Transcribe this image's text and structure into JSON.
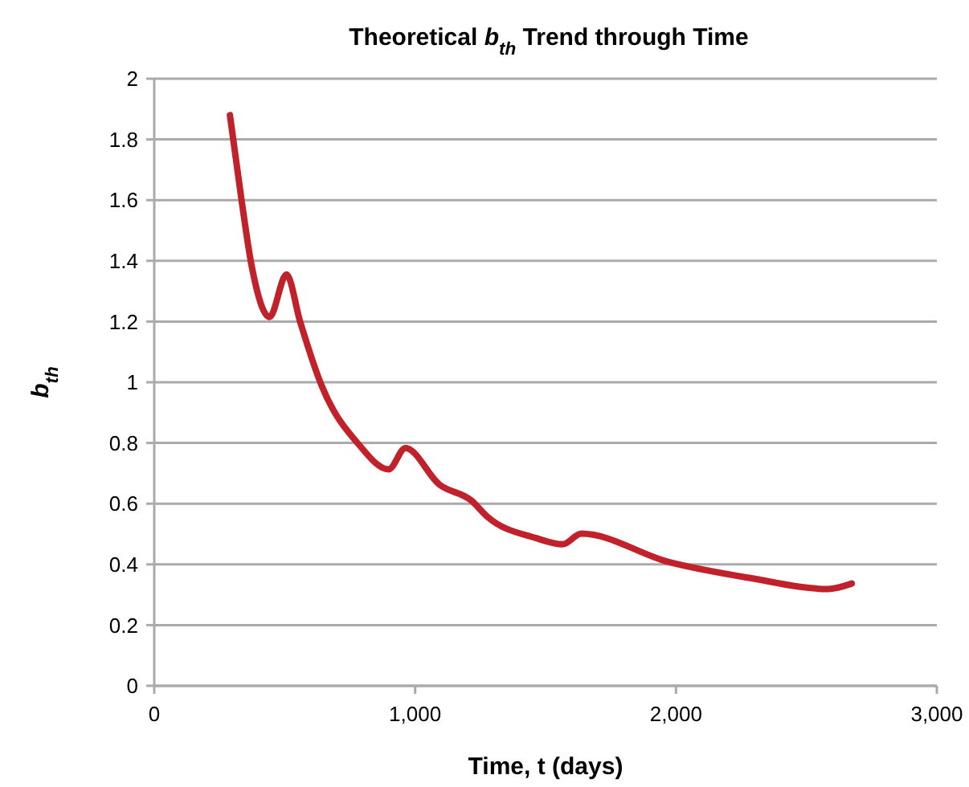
{
  "chart_data": {
    "type": "line",
    "title": "Theoretical b$_{th}$ Trend through Time",
    "xlabel": "Time, t (days)",
    "ylabel": "b$_{th}$",
    "series": [
      {
        "color": "#c0212b",
        "x": [
          290,
          333,
          374,
          442,
          507,
          559,
          641,
          784,
          898,
          963,
          1093,
          1216,
          1277,
          1462,
          1565,
          1637,
          1976,
          2284,
          2582,
          2674
        ],
        "values": [
          1.88,
          1.61,
          1.38,
          1.215,
          1.355,
          1.2,
          0.99,
          0.795,
          0.713,
          0.783,
          0.663,
          0.61,
          0.557,
          0.487,
          0.466,
          0.501,
          0.407,
          0.355,
          0.319,
          0.337
        ]
      }
    ],
    "xlim": [
      0,
      3000
    ],
    "xticks": [
      {
        "value": 0,
        "label": "0"
      },
      {
        "value": 1000,
        "label": "1,000"
      },
      {
        "value": 2000,
        "label": "2,000"
      },
      {
        "value": 3000,
        "label": "3,000"
      }
    ],
    "ylim": [
      0,
      2
    ],
    "yticks": [
      0,
      0.2,
      0.4,
      0.6,
      0.8,
      1,
      1.2,
      1.4,
      1.6,
      1.8,
      2
    ],
    "grid": "y",
    "marker": "none",
    "line_style": "solid"
  }
}
